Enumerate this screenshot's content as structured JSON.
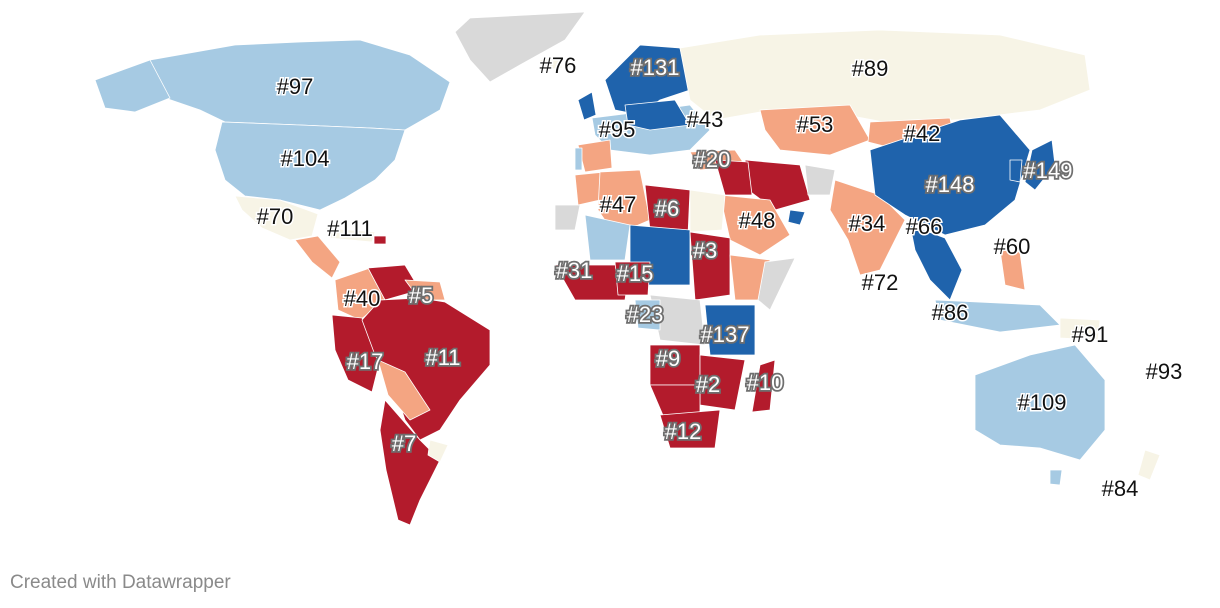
{
  "footer": {
    "credit": "Created with Datawrapper"
  },
  "colors": {
    "rank_1_30": "#b31b2c",
    "rank_31_60": "#f4a582",
    "rank_61_90": "#f7f4e6",
    "rank_91_120": "#a6cae3",
    "rank_121_plus": "#1f63ac",
    "no_data": "#d9d9d9"
  },
  "map": {
    "labels": [
      "#97",
      "#104",
      "#70",
      "#111",
      "#76",
      "#131",
      "#89",
      "#95",
      "#43",
      "#53",
      "#42",
      "#20",
      "#148",
      "#149",
      "#47",
      "#6",
      "#48",
      "#34",
      "#66",
      "#60",
      "#3",
      "#31",
      "#15",
      "#40",
      "#5",
      "#72",
      "#23",
      "#137",
      "#86",
      "#91",
      "#93",
      "#17",
      "#11",
      "#9",
      "#2",
      "#10",
      "#109",
      "#12",
      "#7",
      "#84"
    ]
  }
}
